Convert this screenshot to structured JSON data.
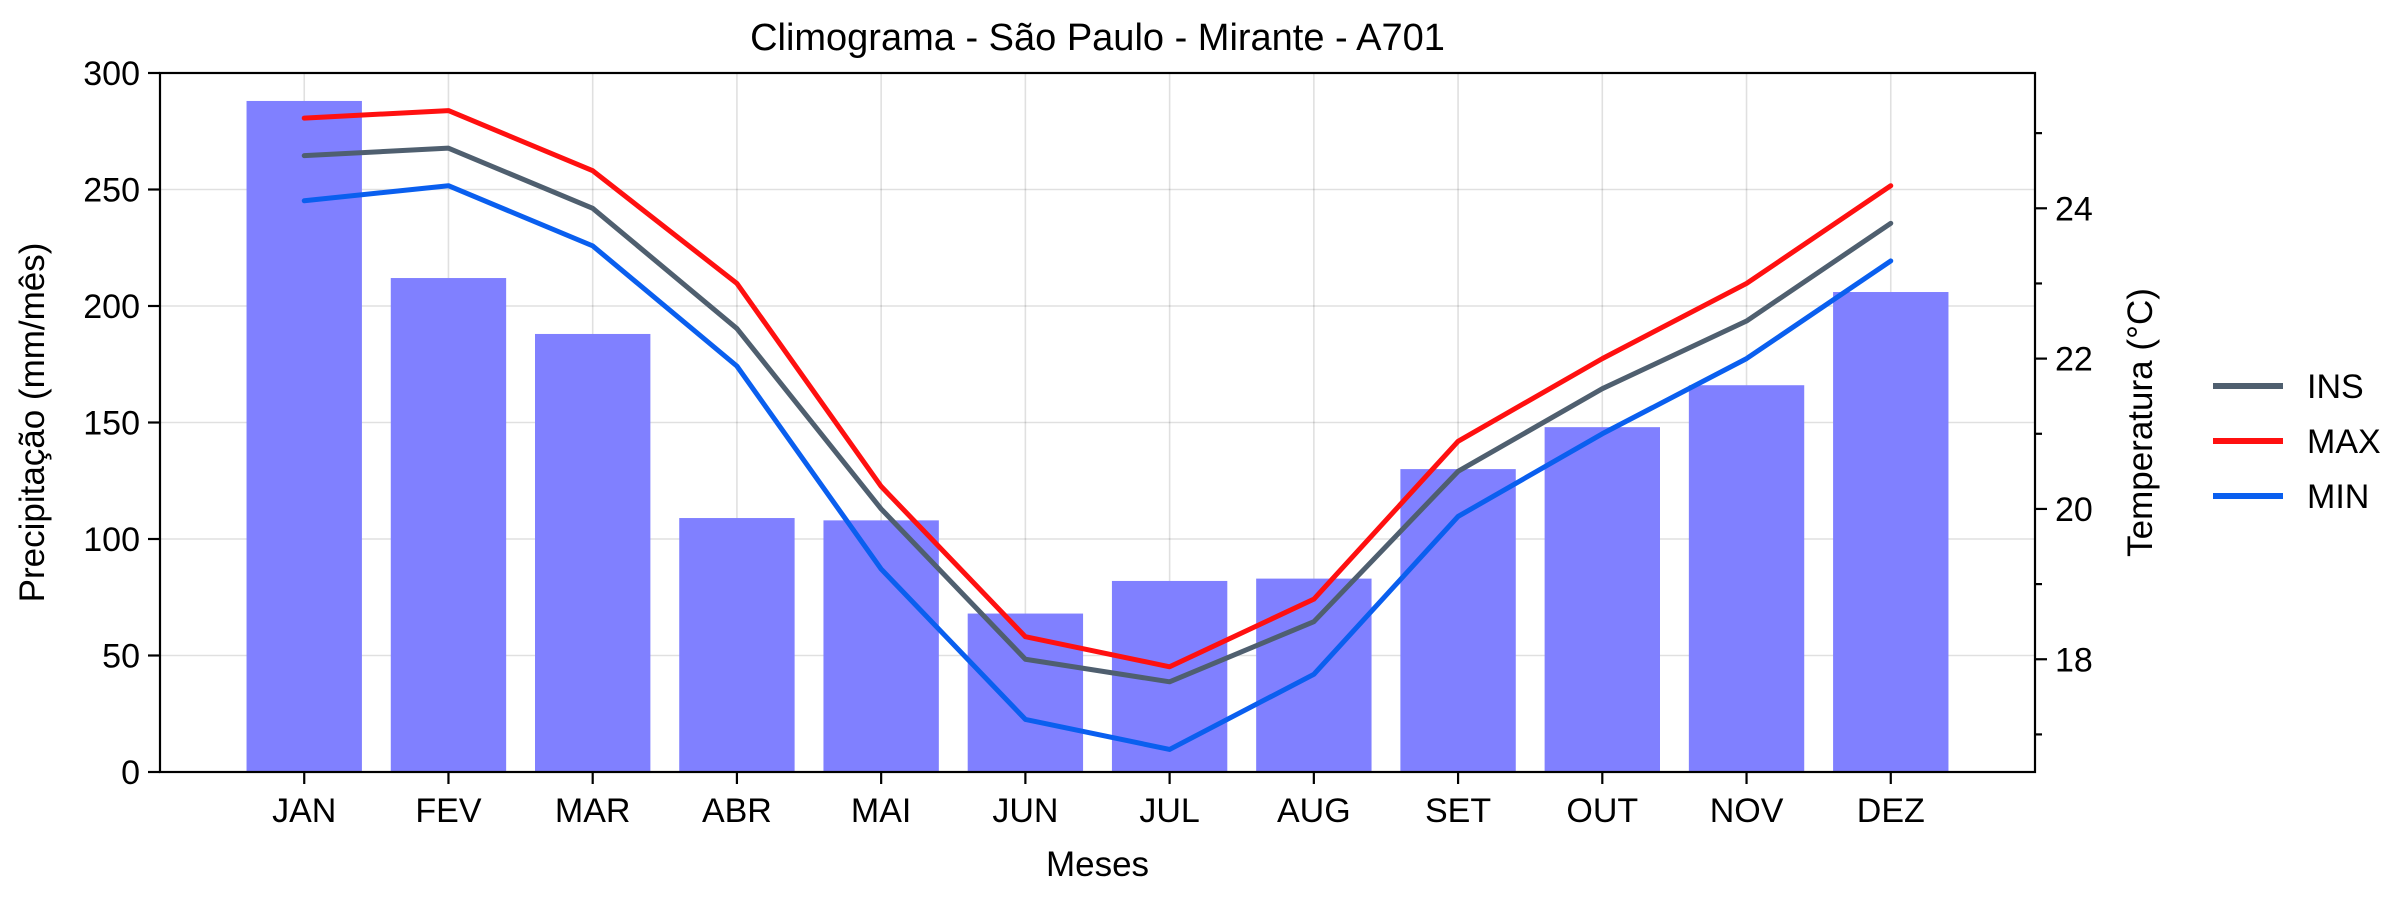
{
  "chart_data": {
    "type": "bar+line",
    "title": "Climograma - São Paulo - Mirante - A701",
    "xlabel": "Meses",
    "ylabel_left": "Precipitação (mm/mês)",
    "ylabel_right": "Temperatura (°C)",
    "categories": [
      "JAN",
      "FEV",
      "MAR",
      "ABR",
      "MAI",
      "JUN",
      "JUL",
      "AUG",
      "SET",
      "OUT",
      "NOV",
      "DEZ"
    ],
    "left_axis": {
      "min": 0,
      "max": 300,
      "ticks": [
        0,
        50,
        100,
        150,
        200,
        250,
        300
      ]
    },
    "right_axis": {
      "min": 16.5,
      "max": 25.8,
      "ticks": [
        18,
        20,
        22,
        24
      ]
    },
    "bars": {
      "name": "Precipitação",
      "color": "#8080ff",
      "values": [
        288,
        212,
        188,
        109,
        108,
        68,
        82,
        83,
        130,
        148,
        166,
        206
      ]
    },
    "series": [
      {
        "name": "INS",
        "color": "#4f5f6f",
        "values": [
          24.7,
          24.8,
          24.0,
          22.4,
          20.0,
          18.0,
          17.7,
          18.5,
          20.5,
          21.6,
          22.5,
          23.8
        ]
      },
      {
        "name": "MAX",
        "color": "#ff1010",
        "values": [
          25.2,
          25.3,
          24.5,
          23.0,
          20.3,
          18.3,
          17.9,
          18.8,
          20.9,
          22.0,
          23.0,
          24.3
        ]
      },
      {
        "name": "MIN",
        "color": "#0a5fef",
        "values": [
          24.1,
          24.3,
          23.5,
          21.9,
          19.2,
          17.2,
          16.8,
          17.8,
          19.9,
          21.0,
          22.0,
          23.3
        ]
      }
    ],
    "grid": true,
    "legend": {
      "position": "right",
      "entries": [
        "INS",
        "MAX",
        "MIN"
      ]
    }
  }
}
